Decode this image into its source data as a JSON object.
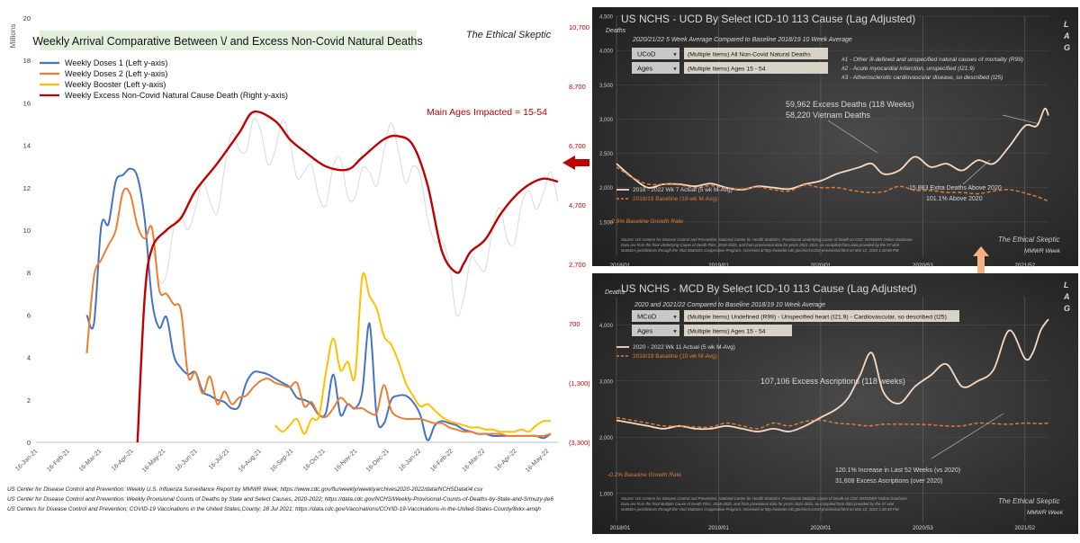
{
  "left_chart": {
    "title": "Weekly Arrival Comparative Between \\/ and Excess Non-Covid Natural Deaths",
    "brand": "The Ethical Skeptic",
    "y_unit_label": "Millions",
    "annotation": "Main Ages Impacted = 15-54",
    "legend": [
      "Weekly Doses 1 (Left y-axis)",
      "Weekly Doses 2 (Left y-axis)",
      "Weekly Booster (Left y-axis)",
      "Weekly Excess Non-Covid Natural Cause Death (Right y-axis)"
    ],
    "left_ticks": [
      "20",
      "18",
      "16",
      "14",
      "12",
      "10",
      "8",
      "6",
      "4",
      "2",
      "0"
    ],
    "right_ticks": [
      "10,700",
      "8,700",
      "6,700",
      "4,700",
      "2,700",
      "700",
      "(1,300)",
      "(3,300)"
    ],
    "x_ticks": [
      "16-Jan-21",
      "16-Feb-21",
      "16-Mar-21",
      "16-Apr-21",
      "16-May-21",
      "16-Jun-21",
      "16-Jul-21",
      "16-Aug-21",
      "16-Sep-21",
      "16-Oct-21",
      "16-Nov-21",
      "16-Dec-21",
      "16-Jan-22",
      "16-Feb-22",
      "16-Mar-22",
      "16-Apr-22",
      "16-May-22"
    ],
    "colors": {
      "dose1": "#4472C4",
      "dose2": "#ED7D31",
      "booster": "#FFC000",
      "excess": "#C00000",
      "grey": "#d9d9d9"
    }
  },
  "sources": [
    "US Center for Disease Control and Prevention: Weekly U.S. Influenza Surveillance Report by MMWR Week; https://www.cdc.gov/flu/weekly/weeklyarchives2020-2022/data/NCHSData04.csv",
    "US Center for Disease Control and Prevention: Weekly Provisional Counts of Deaths by State and Select Causes, 2020-2022; https://data.cdc.gov/NCHS/Weekly-Provisional-Counts-of-Deaths-by-State-and-S/muzy-jte6",
    "US Centers for Disease Control and Prevention;  COVID-19 Vaccinations in the United States,County;  28 Jul 2021; https://data.cdc.gov/Vaccinations/COVID-19-Vaccinations-in-the-United-States-County/8xkx-amqh"
  ],
  "top_panel": {
    "title": "US NCHS - UCD By Select ICD-10 113 Cause (Lag Adjusted)",
    "subtitle": "2020/21/22  5 Week Average Compared to Baseline 2018/19  10 Week Average",
    "y_label": "Deaths",
    "lag": [
      "L",
      "A",
      "G"
    ],
    "filter1_label": "UCoD",
    "filter1_value": "(Multiple Items) All Non-Covid Natural Deaths",
    "filter2_label": "Ages",
    "filter2_value": "(Multiple Items) Ages 15 - 54",
    "notes": [
      "#1 - Other ill-defined and unspecified natural causes of mortality (R99)",
      "#2 - Acute myocardial infarction, unspecified (I21.9)",
      "#3 - Atherosclerotic cardiovascular disease, so described (I25)"
    ],
    "excess_text": "59,962  Excess Deaths (118 Weeks)",
    "vietnam_text": "58,220  Vietnam Deaths",
    "extra_text": "15,883   Extra Deaths Above 2020",
    "above_text": "101.1% Above 2020",
    "legend_actual": "2018 - 2022  Wk 7 Actual (5 wk M-Avg)",
    "legend_baseline": "2018/19  Baseline (10-wk M-Avg)",
    "growth": "-2.9% Baseline Growth Rate",
    "source": "Source: US Centers for Disease Control and Prevention, National Center for Health Statistics. Provisional Underlying Cause of Death on CDC WONDER Online Database.",
    "source2": "Data are from the final Underlying Cause of Death Files, 2018-2020, and from provisional data for years 2021-2022, as compiled from data provided by the 57 vital",
    "source3": "statistics jurisdictions through the Vital Statistics Cooperative Program. Accessed at http://wonder.cdc.gov/mcd-icd10-provisional.html on Mar 12, 2022 1:40:48 PM",
    "brand": "The Ethical Skeptic",
    "week_label": "MMWR Week",
    "y_ticks": [
      "4,500",
      "4,000",
      "3,500",
      "3,000",
      "2,500",
      "2,000",
      "1,500"
    ],
    "x_ticks": [
      "2018/01",
      "2019/01",
      "2020/01",
      "2020/53",
      "2021/52"
    ],
    "colors": {
      "actual": "#f7d9c4",
      "baseline": "#e07b39",
      "bg": "#2b2b2b"
    }
  },
  "bottom_panel": {
    "title": "US NCHS - MCD By Select ICD-10 113 Cause (Lag Adjusted)",
    "subtitle": "2020 and 2021/22  Compared to Baseline 2018/19  10 Week Average",
    "y_label": "Deaths",
    "lag": [
      "L",
      "A",
      "G"
    ],
    "filter1_label": "MCoD",
    "filter1_value": "(Multiple Items) Undefined (R99) - Unspecified heart (I21.9) - Cardiovascular, so described (I25)",
    "filter2_label": "Ages",
    "filter2_value": "(Multiple Items) Ages 15 - 54",
    "legend_actual": "2020 - 2022  Wk 11 Actual (5 wk M-Avg)",
    "legend_baseline": "2018/19 Baseline (10 wk M-Avg)",
    "excess_text": "107,106 Excess Ascriptions (118 weeks)",
    "increase_text": "120.1%   Increase in Last 52  Weeks (vs 2020)",
    "ascriptions_text": "31,608   Excess Ascriptions (over 2020)",
    "growth": "-0.2% Baseline Growth Rate",
    "source": "Source: US Centers for Disease Control and Prevention, National Center for Health Statistics. Provisional Multiple Cause of Death on CDC WONDER Online Database.",
    "source2": "Data are from the final Multiple Cause of Death Files, 2018-2020, and from provisional data for years 2021-2022, as compiled from data provided by the 57 vital",
    "source3": "statistics jurisdictions through the Vital Statistics Cooperative Program. Accessed at http://wonder.cdc.gov/mcd-icd10-provisional.html on Mar 12, 2022 1:40:48 PM",
    "brand": "The Ethical Skeptic",
    "week_label": "MMWR Week",
    "y_ticks": [
      "4,000",
      "3,000",
      "2,000",
      "1,000"
    ],
    "x_ticks": [
      "2018/01",
      "2019/01",
      "2020/01",
      "2020/53",
      "2021/52"
    ]
  },
  "chart_data": [
    {
      "type": "line",
      "title": "Weekly Arrival Comparative Between \\/ and Excess Non-Covid Natural Deaths",
      "ylabel": "Millions",
      "ylim": [
        0,
        20
      ],
      "y2lim": [
        -3300,
        10700
      ],
      "x_range_weeks": [
        0,
        72
      ],
      "series": [
        {
          "name": "Weekly Doses 1 (Left y-axis)",
          "axis": "left",
          "x": [
            7,
            8,
            9,
            10,
            11,
            12,
            13,
            14,
            15,
            16,
            17,
            18,
            19,
            20,
            21,
            22,
            23,
            24,
            25,
            26,
            27,
            28,
            29,
            30,
            31,
            32,
            33,
            34,
            35,
            36,
            37,
            38,
            39,
            40,
            41,
            42,
            43,
            44,
            45,
            46,
            47,
            48,
            49,
            50,
            51,
            52,
            53,
            54,
            55,
            56,
            57,
            58,
            59,
            60,
            61,
            62,
            63,
            64,
            65,
            66,
            67,
            68,
            69,
            70,
            71
          ],
          "values": [
            6.0,
            5.6,
            10.2,
            10.3,
            12.3,
            12.6,
            12.9,
            12.5,
            10.5,
            6.7,
            5.4,
            5.9,
            4.1,
            3.5,
            3.2,
            3.3,
            2.4,
            2.2,
            2.0,
            1.9,
            1.6,
            1.7,
            2.8,
            3.3,
            3.3,
            3.2,
            3.0,
            2.8,
            2.6,
            2.1,
            2.0,
            1.8,
            1.3,
            1.4,
            3.2,
            1.3,
            1.8,
            1.6,
            2.4,
            5.6,
            1.2,
            0.9,
            2.0,
            2.2,
            2.2,
            1.9,
            1.3,
            0.1,
            0.8,
            1.0,
            0.9,
            0.8,
            0.6,
            0.5,
            0.4,
            0.4,
            0.3,
            0.3,
            0.3,
            0.3,
            0.3,
            0.3,
            0.3,
            0.2,
            0.4
          ]
        },
        {
          "name": "Weekly Doses 2 (Left y-axis)",
          "axis": "left",
          "x": [
            7,
            8,
            9,
            10,
            11,
            12,
            13,
            14,
            15,
            16,
            17,
            18,
            19,
            20,
            21,
            22,
            23,
            24,
            25,
            26,
            27,
            28,
            29,
            30,
            31,
            32,
            33,
            34,
            35,
            36,
            37,
            38,
            39,
            40,
            41,
            42,
            43,
            44,
            45,
            46,
            47,
            48,
            49,
            50,
            51,
            52,
            53,
            54,
            55,
            56,
            57,
            58,
            59,
            60,
            61,
            62,
            63,
            64,
            65,
            66,
            67,
            68,
            69,
            70,
            71
          ],
          "values": [
            4.2,
            7.8,
            8.6,
            9.3,
            10.0,
            11.8,
            11.7,
            10.2,
            9.6,
            10.1,
            7.2,
            7.0,
            6.5,
            6.2,
            3.1,
            3.3,
            2.3,
            3.1,
            1.8,
            2.4,
            1.8,
            2.1,
            2.2,
            2.6,
            2.9,
            3.0,
            2.8,
            2.7,
            2.6,
            2.8,
            1.7,
            1.9,
            1.3,
            1.2,
            1.6,
            2.1,
            1.8,
            1.6,
            1.6,
            1.4,
            1.4,
            2.7,
            1.5,
            1.2,
            1.1,
            1.1,
            1.1,
            1.0,
            0.9,
            0.9,
            0.7,
            0.6,
            0.5,
            0.5,
            0.4,
            0.4,
            0.4,
            0.4,
            0.3,
            0.3,
            0.3,
            0.3,
            0.3,
            0.3,
            0.4
          ]
        },
        {
          "name": "Weekly Booster (Left y-axis)",
          "axis": "left",
          "x": [
            33,
            34,
            35,
            36,
            37,
            38,
            39,
            40,
            41,
            42,
            43,
            44,
            45,
            46,
            47,
            48,
            49,
            50,
            51,
            52,
            53,
            54,
            55,
            56,
            57,
            58,
            59,
            60,
            61,
            62,
            63,
            64,
            65,
            66,
            67,
            68,
            69,
            70,
            71
          ],
          "values": [
            0.8,
            0.5,
            0.8,
            1.1,
            0.4,
            1.1,
            1.2,
            3.3,
            4.9,
            3.4,
            3.8,
            3.1,
            7.8,
            6.9,
            6.3,
            5.0,
            4.6,
            3.8,
            2.8,
            2.2,
            1.7,
            1.8,
            1.5,
            1.2,
            1.0,
            0.9,
            0.8,
            0.7,
            0.7,
            0.6,
            0.6,
            0.5,
            0.5,
            0.5,
            0.6,
            0.5,
            0.8,
            1.0,
            1.0
          ]
        },
        {
          "name": "Weekly Excess Non-Covid Natural Cause Death (Right y-axis)",
          "axis": "right",
          "x": [
            14,
            15,
            16,
            18,
            20,
            22,
            25,
            28,
            30,
            33,
            35,
            37,
            40,
            43,
            45,
            48,
            50,
            52,
            54,
            56,
            58,
            59,
            60,
            62,
            64,
            66,
            68,
            70,
            72
          ],
          "values": [
            -3300,
            1500,
            3100,
            3700,
            4100,
            5000,
            5900,
            6900,
            7600,
            7300,
            6700,
            6300,
            5800,
            5700,
            6100,
            6700,
            6800,
            6500,
            5200,
            3000,
            2300,
            2600,
            3000,
            3400,
            4200,
            4800,
            5200,
            5400,
            5300
          ]
        }
      ]
    },
    {
      "type": "line",
      "title": "US NCHS - UCD By Select ICD-10 113 Cause (Lag Adjusted)",
      "ylabel": "Deaths",
      "ylim": [
        1000,
        4500
      ],
      "x_range_weeks": [
        0,
        220
      ],
      "series": [
        {
          "name": "2018 - 2022  Wk 7 Actual (5 wk M-Avg)",
          "x": [
            0,
            8,
            16,
            24,
            32,
            40,
            48,
            56,
            64,
            72,
            80,
            88,
            96,
            104,
            112,
            118,
            124,
            130,
            136,
            144,
            152,
            160,
            168,
            176,
            184,
            192,
            200,
            208,
            214,
            218,
            220
          ],
          "values": [
            2350,
            2150,
            2000,
            2050,
            2050,
            2020,
            2060,
            2000,
            1970,
            2020,
            2000,
            1980,
            2050,
            2100,
            2200,
            2250,
            2300,
            2350,
            2200,
            2250,
            2450,
            2300,
            2350,
            2250,
            2400,
            2350,
            2600,
            2900,
            2900,
            3150,
            3050
          ]
        },
        {
          "name": "2018/19  Baseline (10-wk M-Avg)",
          "x": [
            0,
            8,
            16,
            24,
            32,
            40,
            48,
            56,
            64,
            72,
            80,
            88,
            96,
            104,
            112,
            120,
            128,
            136,
            144,
            152,
            160,
            168,
            176,
            184,
            192,
            200,
            208,
            216,
            220
          ],
          "values": [
            2300,
            2150,
            2050,
            2050,
            2040,
            2000,
            2030,
            1990,
            1980,
            2010,
            1970,
            1950,
            2040,
            2000,
            2000,
            1960,
            1930,
            1940,
            2020,
            1960,
            1960,
            1930,
            1930,
            1910,
            1950,
            1970,
            1920,
            1850,
            1800
          ]
        }
      ]
    },
    {
      "type": "line",
      "title": "US NCHS - MCD By Select ICD-10 113 Cause (Lag Adjusted)",
      "ylabel": "Deaths",
      "ylim": [
        500,
        4500
      ],
      "x_range_weeks": [
        0,
        220
      ],
      "series": [
        {
          "name": "2020 - 2022  Wk 11 Actual (5 wk M-Avg)",
          "x": [
            0,
            8,
            16,
            24,
            32,
            40,
            48,
            56,
            64,
            72,
            80,
            88,
            96,
            104,
            112,
            118,
            124,
            130,
            136,
            144,
            152,
            160,
            168,
            176,
            184,
            192,
            200,
            208,
            212,
            216,
            220
          ],
          "values": [
            2300,
            2250,
            2200,
            2150,
            2200,
            2150,
            2150,
            2200,
            2150,
            2100,
            2150,
            2100,
            2200,
            2350,
            2500,
            2700,
            3100,
            3500,
            2800,
            2600,
            2900,
            3100,
            3300,
            2900,
            3000,
            3200,
            3900,
            3400,
            3500,
            3900,
            4100
          ]
        },
        {
          "name": "2018/19 Baseline (10 wk M-Avg)",
          "x": [
            0,
            8,
            16,
            24,
            32,
            40,
            48,
            56,
            64,
            72,
            80,
            88,
            96,
            104,
            112,
            120,
            128,
            136,
            144,
            152,
            160,
            168,
            176,
            184,
            192,
            200,
            208,
            216,
            220
          ],
          "values": [
            2350,
            2300,
            2250,
            2200,
            2200,
            2180,
            2180,
            2250,
            2200,
            2150,
            2250,
            2200,
            2280,
            2300,
            2250,
            2230,
            2200,
            2230,
            2230,
            2230,
            2220,
            2200,
            2200,
            2250,
            2240,
            2230,
            2250,
            2240,
            2250
          ]
        }
      ]
    }
  ]
}
